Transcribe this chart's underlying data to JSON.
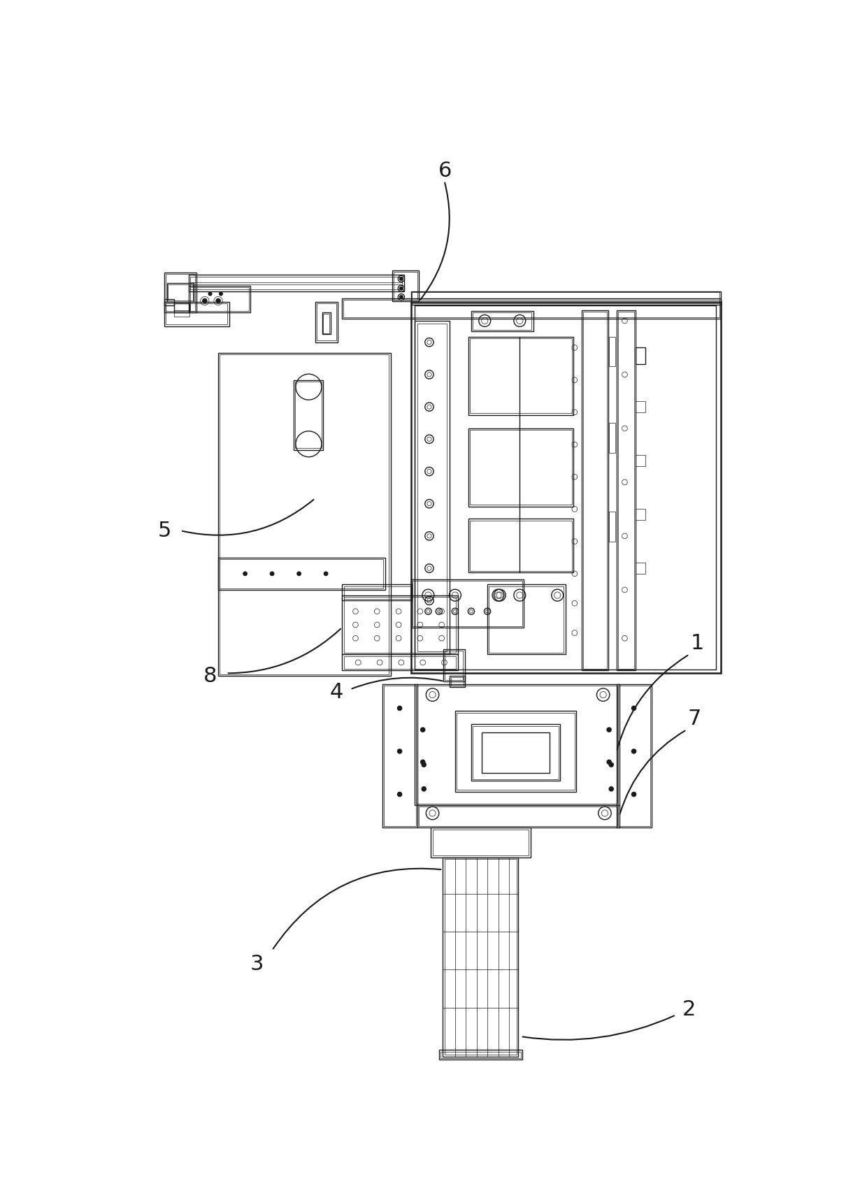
{
  "bg_color": "#ffffff",
  "lc": "#1a1a1a",
  "lw": 1.0,
  "tlw": 0.5,
  "thklw": 1.8,
  "fs": 22,
  "fig_width": 12.4,
  "fig_height": 17.07,
  "dpi": 100
}
